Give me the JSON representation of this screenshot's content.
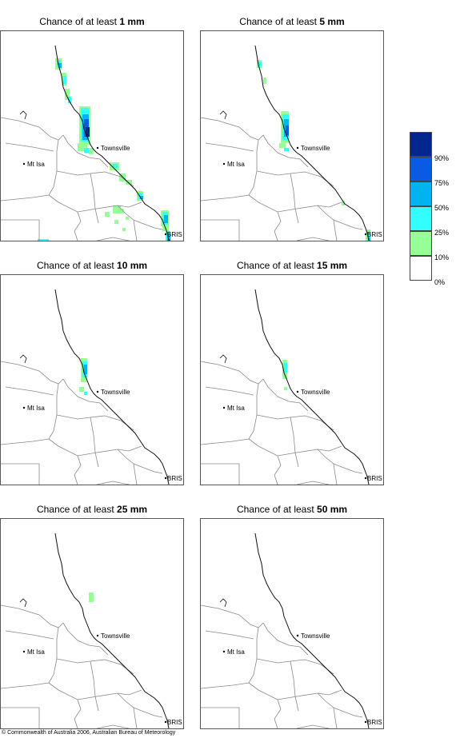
{
  "panels": [
    {
      "prefix": "Chance of at least",
      "amount": "1 mm"
    },
    {
      "prefix": "Chance of at least",
      "amount": "5 mm"
    },
    {
      "prefix": "Chance of at least",
      "amount": "10 mm"
    },
    {
      "prefix": "Chance of at least",
      "amount": "15 mm"
    },
    {
      "prefix": "Chance of at least",
      "amount": "25 mm"
    },
    {
      "prefix": "Chance of at least",
      "amount": "50 mm"
    }
  ],
  "places": {
    "townsville": "Townsville",
    "mt_isa": "Mt Isa",
    "brisbane": "BRIS"
  },
  "legend": {
    "labels": [
      "90%",
      "75%",
      "50%",
      "25%",
      "10%",
      "0%"
    ],
    "colors": [
      "#00288c",
      "#0a5ae6",
      "#00b4f0",
      "#32ffff",
      "#96ff96",
      "#ffffff"
    ]
  },
  "copyright": "© Commonwealth of Australia 2006, Australian Bureau of Meteorology"
}
